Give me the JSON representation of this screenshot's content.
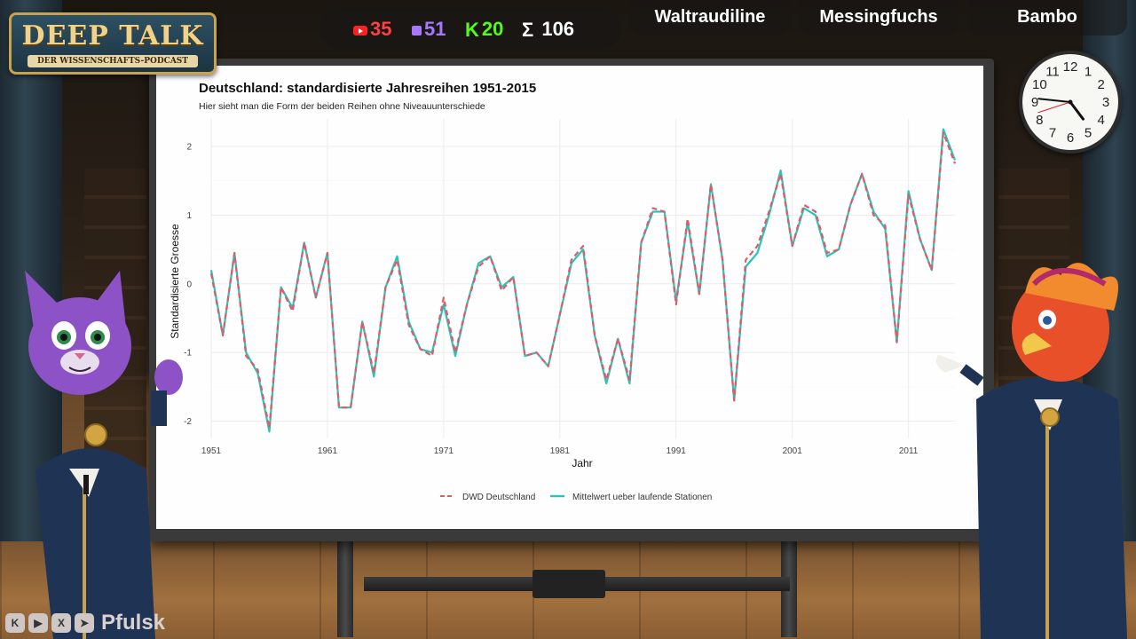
{
  "logo": {
    "title": "DEEP TALK",
    "subtitle": "DER WISSENSCHAFTS-PODCAST"
  },
  "counters": {
    "youtube": "35",
    "twitch": "51",
    "kick": "20",
    "total": "106",
    "total_symbol": "Σ"
  },
  "name_tags": [
    "Waltraudiline",
    "Messingfuchs",
    "Bambo"
  ],
  "clock": {
    "numbers": [
      "12",
      "1",
      "2",
      "3",
      "4",
      "5",
      "6",
      "7",
      "8",
      "9",
      "10",
      "11"
    ],
    "hour": 4,
    "minute": 46,
    "second": 42
  },
  "social": {
    "icons": [
      "kick-icon",
      "youtube-icon",
      "x-icon",
      "telegram-icon"
    ],
    "handle": "Pfulsk"
  },
  "colors": {
    "dwd": "#e05a6a",
    "mittel": "#22c7b8"
  },
  "chart_data": {
    "type": "line",
    "title": "Deutschland: standardisierte Jahresreihen 1951-2015",
    "subtitle": "Hier sieht man die Form der beiden Reihen ohne Niveauunterschiede",
    "xlabel": "Jahr",
    "ylabel": "Standardisierte Groesse",
    "xlim": [
      1951,
      2015
    ],
    "ylim": [
      -2.25,
      2.4
    ],
    "x_ticks": [
      1951,
      1961,
      1971,
      1981,
      1991,
      2001,
      2011
    ],
    "y_ticks": [
      -2,
      -1,
      0,
      1,
      2
    ],
    "grid": true,
    "legend_position": "bottom",
    "x": [
      1951,
      1952,
      1953,
      1954,
      1955,
      1956,
      1957,
      1958,
      1959,
      1960,
      1961,
      1962,
      1963,
      1964,
      1965,
      1966,
      1967,
      1968,
      1969,
      1970,
      1971,
      1972,
      1973,
      1974,
      1975,
      1976,
      1977,
      1978,
      1979,
      1980,
      1981,
      1982,
      1983,
      1984,
      1985,
      1986,
      1987,
      1988,
      1989,
      1990,
      1991,
      1992,
      1993,
      1994,
      1995,
      1996,
      1997,
      1998,
      1999,
      2000,
      2001,
      2002,
      2003,
      2004,
      2005,
      2006,
      2007,
      2008,
      2009,
      2010,
      2011,
      2012,
      2013,
      2014,
      2015
    ],
    "series": [
      {
        "name": "DWD Deutschland",
        "values": [
          0.15,
          -0.75,
          0.45,
          -1.05,
          -1.25,
          -2.1,
          -0.05,
          -0.4,
          0.6,
          -0.2,
          0.45,
          -1.8,
          -1.8,
          -0.55,
          -1.3,
          -0.05,
          0.35,
          -0.6,
          -0.95,
          -1.05,
          -0.2,
          -1.0,
          -0.3,
          0.25,
          0.4,
          -0.1,
          0.1,
          -1.05,
          -1.0,
          -1.2,
          -0.45,
          0.35,
          0.55,
          -0.75,
          -1.4,
          -0.8,
          -1.4,
          0.6,
          1.1,
          1.05,
          -0.3,
          0.95,
          -0.15,
          1.45,
          0.35,
          -1.7,
          0.35,
          0.55,
          1.05,
          1.6,
          0.55,
          1.15,
          1.05,
          0.45,
          0.5,
          1.15,
          1.6,
          1.0,
          0.85,
          -0.85,
          1.3,
          0.65,
          0.2,
          2.2,
          1.75
        ]
      },
      {
        "name": "Mittelwert ueber laufende Stationen",
        "values": [
          0.2,
          -0.75,
          0.45,
          -1.0,
          -1.3,
          -2.15,
          -0.05,
          -0.35,
          0.6,
          -0.2,
          0.45,
          -1.8,
          -1.8,
          -0.55,
          -1.35,
          -0.05,
          0.4,
          -0.55,
          -0.95,
          -1.0,
          -0.3,
          -1.05,
          -0.3,
          0.3,
          0.4,
          -0.05,
          0.1,
          -1.05,
          -1.0,
          -1.2,
          -0.45,
          0.3,
          0.5,
          -0.75,
          -1.45,
          -0.8,
          -1.45,
          0.6,
          1.05,
          1.05,
          -0.25,
          0.9,
          -0.15,
          1.45,
          0.35,
          -1.7,
          0.25,
          0.45,
          1.0,
          1.65,
          0.55,
          1.1,
          1.0,
          0.4,
          0.5,
          1.15,
          1.6,
          1.05,
          0.8,
          -0.85,
          1.35,
          0.65,
          0.2,
          2.25,
          1.8
        ]
      }
    ]
  }
}
